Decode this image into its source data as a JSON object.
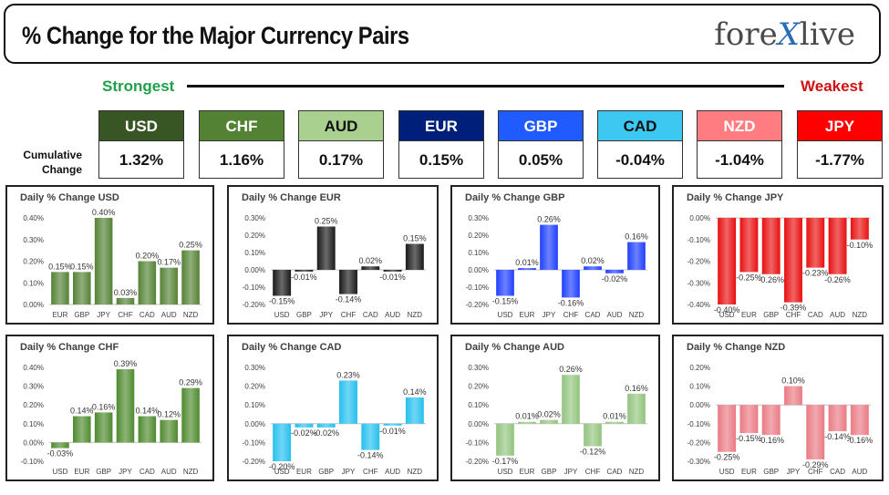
{
  "header": {
    "title": "% Change for the Major Currency Pairs",
    "logo_part1": "fore",
    "logo_x": "X",
    "logo_part2": "live"
  },
  "strength": {
    "strongest_label": "Strongest",
    "weakest_label": "Weakest",
    "cumulative_label_line1": "Cumulative",
    "cumulative_label_line2": "Change",
    "currencies": [
      {
        "name": "USD",
        "value": "1.32%",
        "bg": "#375623",
        "fg": "#ffffff"
      },
      {
        "name": "CHF",
        "value": "1.16%",
        "bg": "#548235",
        "fg": "#ffffff"
      },
      {
        "name": "AUD",
        "value": "0.17%",
        "bg": "#a9d08e",
        "fg": "#111111"
      },
      {
        "name": "EUR",
        "value": "0.15%",
        "bg": "#001f7a",
        "fg": "#ffffff"
      },
      {
        "name": "GBP",
        "value": "0.05%",
        "bg": "#1f5bff",
        "fg": "#ffffff"
      },
      {
        "name": "CAD",
        "value": "-0.04%",
        "bg": "#3cc8f0",
        "fg": "#111111"
      },
      {
        "name": "NZD",
        "value": "-1.04%",
        "bg": "#ff7c80",
        "fg": "#ffffff"
      },
      {
        "name": "JPY",
        "value": "-1.77%",
        "bg": "#ff0000",
        "fg": "#ffffff"
      }
    ]
  },
  "chart_data": [
    {
      "type": "bar",
      "title": "Daily % Change USD",
      "categories": [
        "EUR",
        "GBP",
        "JPY",
        "CHF",
        "CAD",
        "AUD",
        "NZD"
      ],
      "values": [
        0.15,
        0.15,
        0.4,
        0.03,
        0.2,
        0.17,
        0.25
      ],
      "labels": [
        "0.15%",
        "0.15%",
        "0.40%",
        "0.03%",
        "0.20%",
        "0.17%",
        "0.25%"
      ],
      "ylim": [
        0,
        0.4
      ],
      "yticks": [
        "0.00%",
        "0.10%",
        "0.20%",
        "0.30%",
        "0.40%"
      ],
      "color": "#548235"
    },
    {
      "type": "bar",
      "title": "Daily % Change EUR",
      "categories": [
        "USD",
        "GBP",
        "JPY",
        "CHF",
        "CAD",
        "AUD",
        "NZD"
      ],
      "values": [
        -0.15,
        -0.01,
        0.25,
        -0.14,
        0.02,
        -0.01,
        0.15
      ],
      "labels": [
        "-0.15%",
        "-0.01%",
        "0.25%",
        "-0.14%",
        "0.02%",
        "-0.01%",
        "0.15%"
      ],
      "ylim": [
        -0.2,
        0.3
      ],
      "yticks": [
        "-0.20%",
        "-0.10%",
        "0.00%",
        "0.10%",
        "0.20%",
        "0.30%"
      ],
      "color": "#1a1a1a"
    },
    {
      "type": "bar",
      "title": "Daily % Change GBP",
      "categories": [
        "USD",
        "EUR",
        "JPY",
        "CHF",
        "CAD",
        "AUD",
        "NZD"
      ],
      "values": [
        -0.15,
        0.01,
        0.26,
        -0.16,
        0.02,
        -0.02,
        0.16
      ],
      "labels": [
        "-0.15%",
        "0.01%",
        "0.26%",
        "-0.16%",
        "0.02%",
        "-0.02%",
        "0.16%"
      ],
      "ylim": [
        -0.2,
        0.3
      ],
      "yticks": [
        "-0.20%",
        "-0.10%",
        "0.00%",
        "0.10%",
        "0.20%",
        "0.30%"
      ],
      "color": "#1f3fff"
    },
    {
      "type": "bar",
      "title": "Daily % Change JPY",
      "categories": [
        "USD",
        "EUR",
        "GBP",
        "CHF",
        "CAD",
        "AUD",
        "NZD"
      ],
      "values": [
        -0.4,
        -0.25,
        -0.26,
        -0.39,
        -0.23,
        -0.26,
        -0.1
      ],
      "labels": [
        "-0.40%",
        "-0.25%",
        "-0.26%",
        "-0.39%",
        "-0.23%",
        "-0.26%",
        "-0.10%"
      ],
      "ylim": [
        -0.4,
        0
      ],
      "yticks": [
        "-0.40%",
        "-0.30%",
        "-0.20%",
        "-0.10%",
        "0.00%"
      ],
      "color": "#e81010"
    },
    {
      "type": "bar",
      "title": "Daily % Change CHF",
      "categories": [
        "USD",
        "EUR",
        "GBP",
        "JPY",
        "CAD",
        "AUD",
        "NZD"
      ],
      "values": [
        -0.03,
        0.14,
        0.16,
        0.39,
        0.14,
        0.12,
        0.29
      ],
      "labels": [
        "-0.03%",
        "0.14%",
        "0.16%",
        "0.39%",
        "0.14%",
        "0.12%",
        "0.29%"
      ],
      "ylim": [
        -0.1,
        0.4
      ],
      "yticks": [
        "-0.10%",
        "0.00%",
        "0.10%",
        "0.20%",
        "0.30%",
        "0.40%"
      ],
      "color": "#4e8a2e"
    },
    {
      "type": "bar",
      "title": "Daily % Change CAD",
      "categories": [
        "USD",
        "EUR",
        "GBP",
        "JPY",
        "CHF",
        "AUD",
        "NZD"
      ],
      "values": [
        -0.2,
        -0.02,
        -0.02,
        0.23,
        -0.14,
        -0.01,
        0.14
      ],
      "labels": [
        "-0.20%",
        "-0.02%",
        "-0.02%",
        "0.23%",
        "-0.14%",
        "-0.01%",
        "0.14%"
      ],
      "ylim": [
        -0.2,
        0.3
      ],
      "yticks": [
        "-0.20%",
        "-0.10%",
        "0.00%",
        "0.10%",
        "0.20%",
        "0.30%"
      ],
      "color": "#25c0ee"
    },
    {
      "type": "bar",
      "title": "Daily % Change AUD",
      "categories": [
        "USD",
        "EUR",
        "GBP",
        "JPY",
        "CHF",
        "CAD",
        "NZD"
      ],
      "values": [
        -0.17,
        0.01,
        0.02,
        0.26,
        -0.12,
        0.01,
        0.16
      ],
      "labels": [
        "-0.17%",
        "0.01%",
        "0.02%",
        "0.26%",
        "-0.12%",
        "0.01%",
        "0.16%"
      ],
      "ylim": [
        -0.2,
        0.3
      ],
      "yticks": [
        "-0.20%",
        "-0.10%",
        "0.00%",
        "0.10%",
        "0.20%",
        "0.30%"
      ],
      "color": "#93c47d"
    },
    {
      "type": "bar",
      "title": "Daily % Change NZD",
      "categories": [
        "USD",
        "EUR",
        "GBP",
        "JPY",
        "CHF",
        "CAD",
        "AUD"
      ],
      "values": [
        -0.25,
        -0.15,
        -0.16,
        0.1,
        -0.29,
        -0.14,
        -0.16
      ],
      "labels": [
        "-0.25%",
        "-0.15%",
        "-0.16%",
        "0.10%",
        "-0.29%",
        "-0.14%",
        "-0.16%"
      ],
      "ylim": [
        -0.3,
        0.2
      ],
      "yticks": [
        "-0.30%",
        "-0.20%",
        "-0.10%",
        "0.00%",
        "0.10%",
        "0.20%"
      ],
      "color": "#ea7a84"
    }
  ]
}
